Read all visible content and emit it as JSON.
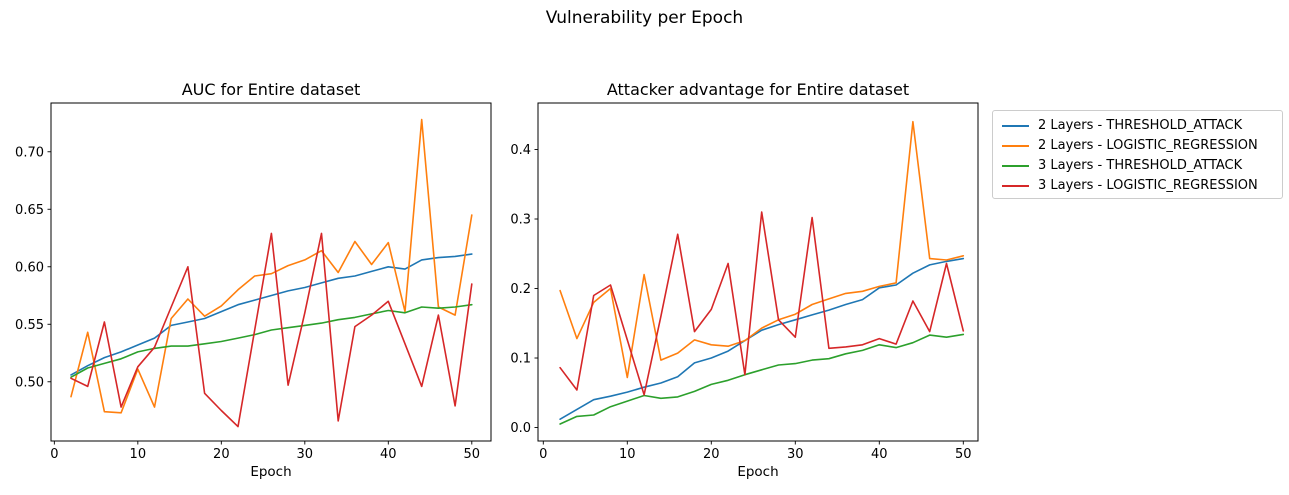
{
  "figure": {
    "suptitle": "Vulnerability per Epoch",
    "background": "#ffffff"
  },
  "legend": {
    "entries": [
      {
        "label": "2 Layers - THRESHOLD_ATTACK",
        "color": "#1f77b4"
      },
      {
        "label": "2 Layers - LOGISTIC_REGRESSION",
        "color": "#ff7f0e"
      },
      {
        "label": "3 Layers - THRESHOLD_ATTACK",
        "color": "#2ca02c"
      },
      {
        "label": "3 Layers - LOGISTIC_REGRESSION",
        "color": "#d62728"
      }
    ]
  },
  "chart_data": [
    {
      "type": "line",
      "title": "AUC for Entire dataset",
      "xlabel": "Epoch",
      "legend_position": "outside-right",
      "grid": false,
      "x": [
        2,
        4,
        6,
        8,
        10,
        12,
        14,
        16,
        18,
        20,
        22,
        24,
        26,
        28,
        30,
        32,
        34,
        36,
        38,
        40,
        42,
        44,
        46,
        48,
        50
      ],
      "xlim": [
        -0.4,
        52.3
      ],
      "ylim": [
        0.4485,
        0.7424
      ],
      "xtick_values": [
        0,
        10,
        20,
        30,
        40,
        50
      ],
      "xtick_labels": [
        "0",
        "10",
        "20",
        "30",
        "40",
        "50"
      ],
      "ytick_values": [
        0.5,
        0.55,
        0.6,
        0.65,
        0.7
      ],
      "ytick_labels": [
        "0.50",
        "0.55",
        "0.60",
        "0.65",
        "0.70"
      ],
      "series": [
        {
          "name": "2 Layers - THRESHOLD_ATTACK",
          "color": "#1f77b4",
          "values": [
            0.506,
            0.514,
            0.521,
            0.526,
            0.532,
            0.538,
            0.549,
            0.552,
            0.555,
            0.561,
            0.567,
            0.571,
            0.575,
            0.579,
            0.582,
            0.586,
            0.59,
            0.592,
            0.596,
            0.6,
            0.598,
            0.606,
            0.608,
            0.609,
            0.611
          ]
        },
        {
          "name": "2 Layers - LOGISTIC_REGRESSION",
          "color": "#ff7f0e",
          "values": [
            0.487,
            0.543,
            0.474,
            0.473,
            0.511,
            0.478,
            0.555,
            0.572,
            0.557,
            0.566,
            0.58,
            0.592,
            0.594,
            0.601,
            0.606,
            0.614,
            0.595,
            0.622,
            0.602,
            0.621,
            0.561,
            0.728,
            0.565,
            0.558,
            0.645
          ]
        },
        {
          "name": "3 Layers - THRESHOLD_ATTACK",
          "color": "#2ca02c",
          "values": [
            0.504,
            0.512,
            0.516,
            0.52,
            0.526,
            0.529,
            0.531,
            0.531,
            0.533,
            0.535,
            0.538,
            0.541,
            0.545,
            0.547,
            0.549,
            0.551,
            0.554,
            0.556,
            0.559,
            0.562,
            0.56,
            0.565,
            0.564,
            0.565,
            0.567
          ]
        },
        {
          "name": "3 Layers - LOGISTIC_REGRESSION",
          "color": "#d62728",
          "values": [
            0.503,
            0.496,
            0.552,
            0.478,
            0.513,
            0.53,
            0.565,
            0.6,
            0.49,
            0.475,
            0.461,
            0.545,
            0.629,
            0.497,
            0.56,
            0.629,
            0.466,
            0.548,
            0.558,
            0.57,
            0.533,
            0.496,
            0.558,
            0.479,
            0.585
          ]
        }
      ]
    },
    {
      "type": "line",
      "title": "Attacker advantage for Entire dataset",
      "xlabel": "Epoch",
      "grid": false,
      "x": [
        2,
        4,
        6,
        8,
        10,
        12,
        14,
        16,
        18,
        20,
        22,
        24,
        26,
        28,
        30,
        32,
        34,
        36,
        38,
        40,
        42,
        44,
        46,
        48,
        50
      ],
      "xlim": [
        -0.63,
        51.75
      ],
      "ylim": [
        -0.0194,
        0.4669
      ],
      "xtick_values": [
        0,
        10,
        20,
        30,
        40,
        50
      ],
      "xtick_labels": [
        "0",
        "10",
        "20",
        "30",
        "40",
        "50"
      ],
      "ytick_values": [
        0.0,
        0.1,
        0.2,
        0.3,
        0.4
      ],
      "ytick_labels": [
        "0.0",
        "0.1",
        "0.2",
        "0.3",
        "0.4"
      ],
      "series": [
        {
          "name": "2 Layers - THRESHOLD_ATTACK",
          "color": "#1f77b4",
          "values": [
            0.012,
            0.026,
            0.04,
            0.045,
            0.051,
            0.058,
            0.064,
            0.073,
            0.093,
            0.1,
            0.11,
            0.125,
            0.14,
            0.148,
            0.155,
            0.162,
            0.169,
            0.177,
            0.184,
            0.201,
            0.205,
            0.222,
            0.234,
            0.239,
            0.243
          ]
        },
        {
          "name": "2 Layers - LOGISTIC_REGRESSION",
          "color": "#ff7f0e",
          "values": [
            0.197,
            0.128,
            0.18,
            0.2,
            0.072,
            0.22,
            0.097,
            0.107,
            0.126,
            0.119,
            0.117,
            0.125,
            0.143,
            0.155,
            0.163,
            0.177,
            0.185,
            0.193,
            0.196,
            0.203,
            0.208,
            0.44,
            0.243,
            0.241,
            0.247
          ]
        },
        {
          "name": "3 Layers - THRESHOLD_ATTACK",
          "color": "#2ca02c",
          "values": [
            0.005,
            0.016,
            0.018,
            0.03,
            0.038,
            0.046,
            0.042,
            0.044,
            0.052,
            0.062,
            0.068,
            0.076,
            0.083,
            0.09,
            0.092,
            0.097,
            0.099,
            0.106,
            0.111,
            0.119,
            0.115,
            0.122,
            0.133,
            0.13,
            0.134
          ]
        },
        {
          "name": "3 Layers - LOGISTIC_REGRESSION",
          "color": "#d62728",
          "values": [
            0.086,
            0.054,
            0.19,
            0.205,
            0.126,
            0.047,
            0.16,
            0.278,
            0.138,
            0.17,
            0.236,
            0.076,
            0.31,
            0.155,
            0.13,
            0.302,
            0.114,
            0.116,
            0.119,
            0.128,
            0.12,
            0.182,
            0.138,
            0.236,
            0.139
          ]
        }
      ]
    }
  ]
}
